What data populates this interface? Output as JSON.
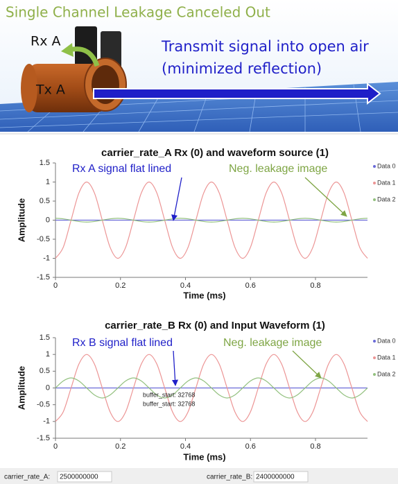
{
  "header": {
    "title": "Single Channel Leakage Canceled Out",
    "rx_label": "Rx A",
    "tx_label": "Tx A",
    "caption_line1": "Transmit signal into open air",
    "caption_line2": "(minimized reflection)"
  },
  "chart_data": [
    {
      "type": "line",
      "title": "carrier_rate_A Rx (0) and waveform source (1)",
      "x_label": "Time (ms)",
      "y_label": "Amplitude",
      "xlim": [
        0,
        0.96
      ],
      "xticks": [
        0,
        0.2,
        0.4,
        0.6,
        0.8
      ],
      "ylim": [
        -1.5,
        1.5
      ],
      "yticks": [
        -1.5,
        -1,
        -0.5,
        0,
        0.5,
        1,
        1.5
      ],
      "legend": "right",
      "grid": false,
      "x": [
        0,
        0.024,
        0.048,
        0.072,
        0.096,
        0.12,
        0.144,
        0.168,
        0.192,
        0.216,
        0.24,
        0.264,
        0.288,
        0.312,
        0.336,
        0.36,
        0.384,
        0.408,
        0.432,
        0.456,
        0.48,
        0.504,
        0.528,
        0.552,
        0.576,
        0.6,
        0.624,
        0.648,
        0.672,
        0.696,
        0.72,
        0.744,
        0.768,
        0.792,
        0.816,
        0.84,
        0.864,
        0.888,
        0.912,
        0.936,
        0.96
      ],
      "series": [
        {
          "name": "Data 0",
          "color": "#6a6ad8",
          "values": [
            0,
            0,
            0,
            0,
            0,
            0,
            0,
            0,
            0,
            0,
            0,
            0,
            0,
            0,
            0,
            0,
            0,
            0,
            0,
            0,
            0,
            0,
            0,
            0,
            0,
            0,
            0,
            0,
            0,
            0,
            0,
            0,
            0,
            0,
            0,
            0,
            0,
            0,
            0,
            0,
            0
          ]
        },
        {
          "name": "Data 1",
          "color": "#ec9494",
          "values": [
            -1,
            -0.71,
            0,
            0.71,
            1,
            0.71,
            0,
            -0.71,
            -1,
            -0.71,
            0,
            0.71,
            1,
            0.71,
            0,
            -0.71,
            -1,
            -0.71,
            0,
            0.71,
            1,
            0.71,
            0,
            -0.71,
            -1,
            -0.71,
            0,
            0.71,
            1,
            0.71,
            0,
            -0.71,
            -1,
            -0.71,
            0,
            0.71,
            1,
            0.71,
            0,
            -0.71,
            -1
          ]
        },
        {
          "name": "Data 2",
          "color": "#92c07e",
          "values": [
            0.05,
            0.035,
            0,
            -0.035,
            -0.05,
            -0.035,
            0,
            0.035,
            0.05,
            0.035,
            0,
            -0.035,
            -0.05,
            -0.035,
            0,
            0.035,
            0.05,
            0.035,
            0,
            -0.035,
            -0.05,
            -0.035,
            0,
            0.035,
            0.05,
            0.035,
            0,
            -0.035,
            -0.05,
            -0.035,
            0,
            0.035,
            0.05,
            0.035,
            0,
            -0.035,
            -0.05,
            -0.035,
            0,
            0.035,
            0.05
          ]
        }
      ],
      "annotations": [
        {
          "text": "Rx A signal flat lined",
          "color": "#1f1fc8"
        },
        {
          "text": "Neg. leakage image",
          "color": "#7ea544"
        }
      ]
    },
    {
      "type": "line",
      "title": "carrier_rate_B Rx (0) and Input Waveform (1)",
      "x_label": "Time (ms)",
      "y_label": "Amplitude",
      "xlim": [
        0,
        0.96
      ],
      "xticks": [
        0,
        0.2,
        0.4,
        0.6,
        0.8
      ],
      "ylim": [
        -1.5,
        1.5
      ],
      "yticks": [
        -1.5,
        -1,
        -0.5,
        0,
        0.5,
        1,
        1.5
      ],
      "legend": "right",
      "grid": false,
      "x": [
        0,
        0.024,
        0.048,
        0.072,
        0.096,
        0.12,
        0.144,
        0.168,
        0.192,
        0.216,
        0.24,
        0.264,
        0.288,
        0.312,
        0.336,
        0.36,
        0.384,
        0.408,
        0.432,
        0.456,
        0.48,
        0.504,
        0.528,
        0.552,
        0.576,
        0.6,
        0.624,
        0.648,
        0.672,
        0.696,
        0.72,
        0.744,
        0.768,
        0.792,
        0.816,
        0.84,
        0.864,
        0.888,
        0.912,
        0.936,
        0.96
      ],
      "series": [
        {
          "name": "Data 0",
          "color": "#6a6ad8",
          "values": [
            0,
            0,
            0,
            0,
            0,
            0,
            0,
            0,
            0,
            0,
            0,
            0,
            0,
            0,
            0,
            0,
            0,
            0,
            0,
            0,
            0,
            0,
            0,
            0,
            0,
            0,
            0,
            0,
            0,
            0,
            0,
            0,
            0,
            0,
            0,
            0,
            0,
            0,
            0,
            0,
            0
          ]
        },
        {
          "name": "Data 1",
          "color": "#ec9494",
          "values": [
            -1,
            -0.71,
            0,
            0.71,
            1,
            0.71,
            0,
            -0.71,
            -1,
            -0.71,
            0,
            0.71,
            1,
            0.71,
            0,
            -0.71,
            -1,
            -0.71,
            0,
            0.71,
            1,
            0.71,
            0,
            -0.71,
            -1,
            -0.71,
            0,
            0.71,
            1,
            0.71,
            0,
            -0.71,
            -1,
            -0.71,
            0,
            0.71,
            1,
            0.71,
            0,
            -0.71,
            -1
          ]
        },
        {
          "name": "Data 2",
          "color": "#92c07e",
          "values": [
            0,
            0.21,
            0.3,
            0.21,
            0,
            -0.21,
            -0.3,
            -0.21,
            0,
            0.21,
            0.3,
            0.21,
            0,
            -0.21,
            -0.3,
            -0.21,
            0,
            0.21,
            0.3,
            0.21,
            0,
            -0.21,
            -0.3,
            -0.21,
            0,
            0.21,
            0.3,
            0.21,
            0,
            -0.21,
            -0.3,
            -0.21,
            0,
            0.21,
            0.3,
            0.21,
            0,
            -0.21,
            -0.3,
            -0.21,
            0
          ]
        }
      ],
      "annotations": [
        {
          "text": "Rx B signal flat lined",
          "color": "#1f1fc8"
        },
        {
          "text": "Neg. leakage image",
          "color": "#7ea544"
        },
        {
          "text": "buffer_start: 32768",
          "color": "#222222"
        },
        {
          "text": "buffer_start: 32768",
          "color": "#222222"
        }
      ]
    }
  ],
  "footer": {
    "label_a": "carrier_rate_A:",
    "value_a": "2500000000",
    "label_b": "carrier_rate_B:",
    "value_b": "2400000000"
  }
}
